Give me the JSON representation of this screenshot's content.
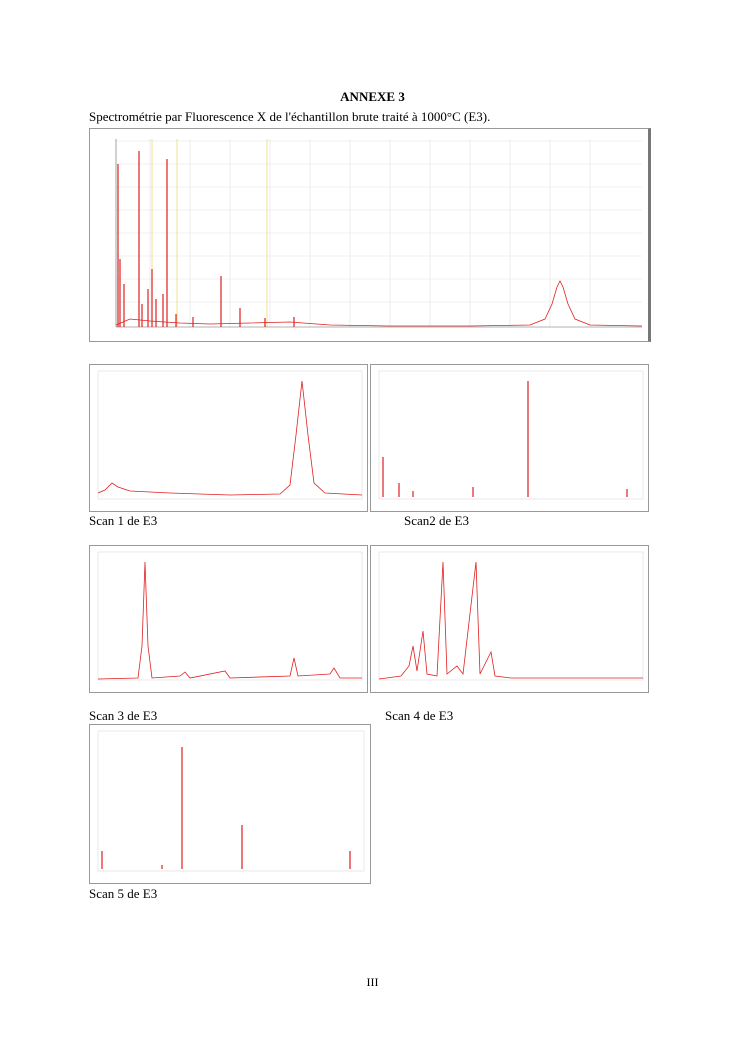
{
  "header": {
    "title": "ANNEXE 3",
    "subtitle": "Spectrométrie par Fluorescence X de l'échantillon brute traité à 1000°C (E3)."
  },
  "figures": {
    "scan1": {
      "caption": "Scan 1 de E3"
    },
    "scan2": {
      "caption": "Scan2 de E3"
    },
    "scan3": {
      "caption": "Scan 3 de E3"
    },
    "scan4": {
      "caption": "Scan 4 de E3"
    },
    "scan5": {
      "caption": "Scan 5 de E3"
    }
  },
  "footer": {
    "page_number": "III"
  }
}
